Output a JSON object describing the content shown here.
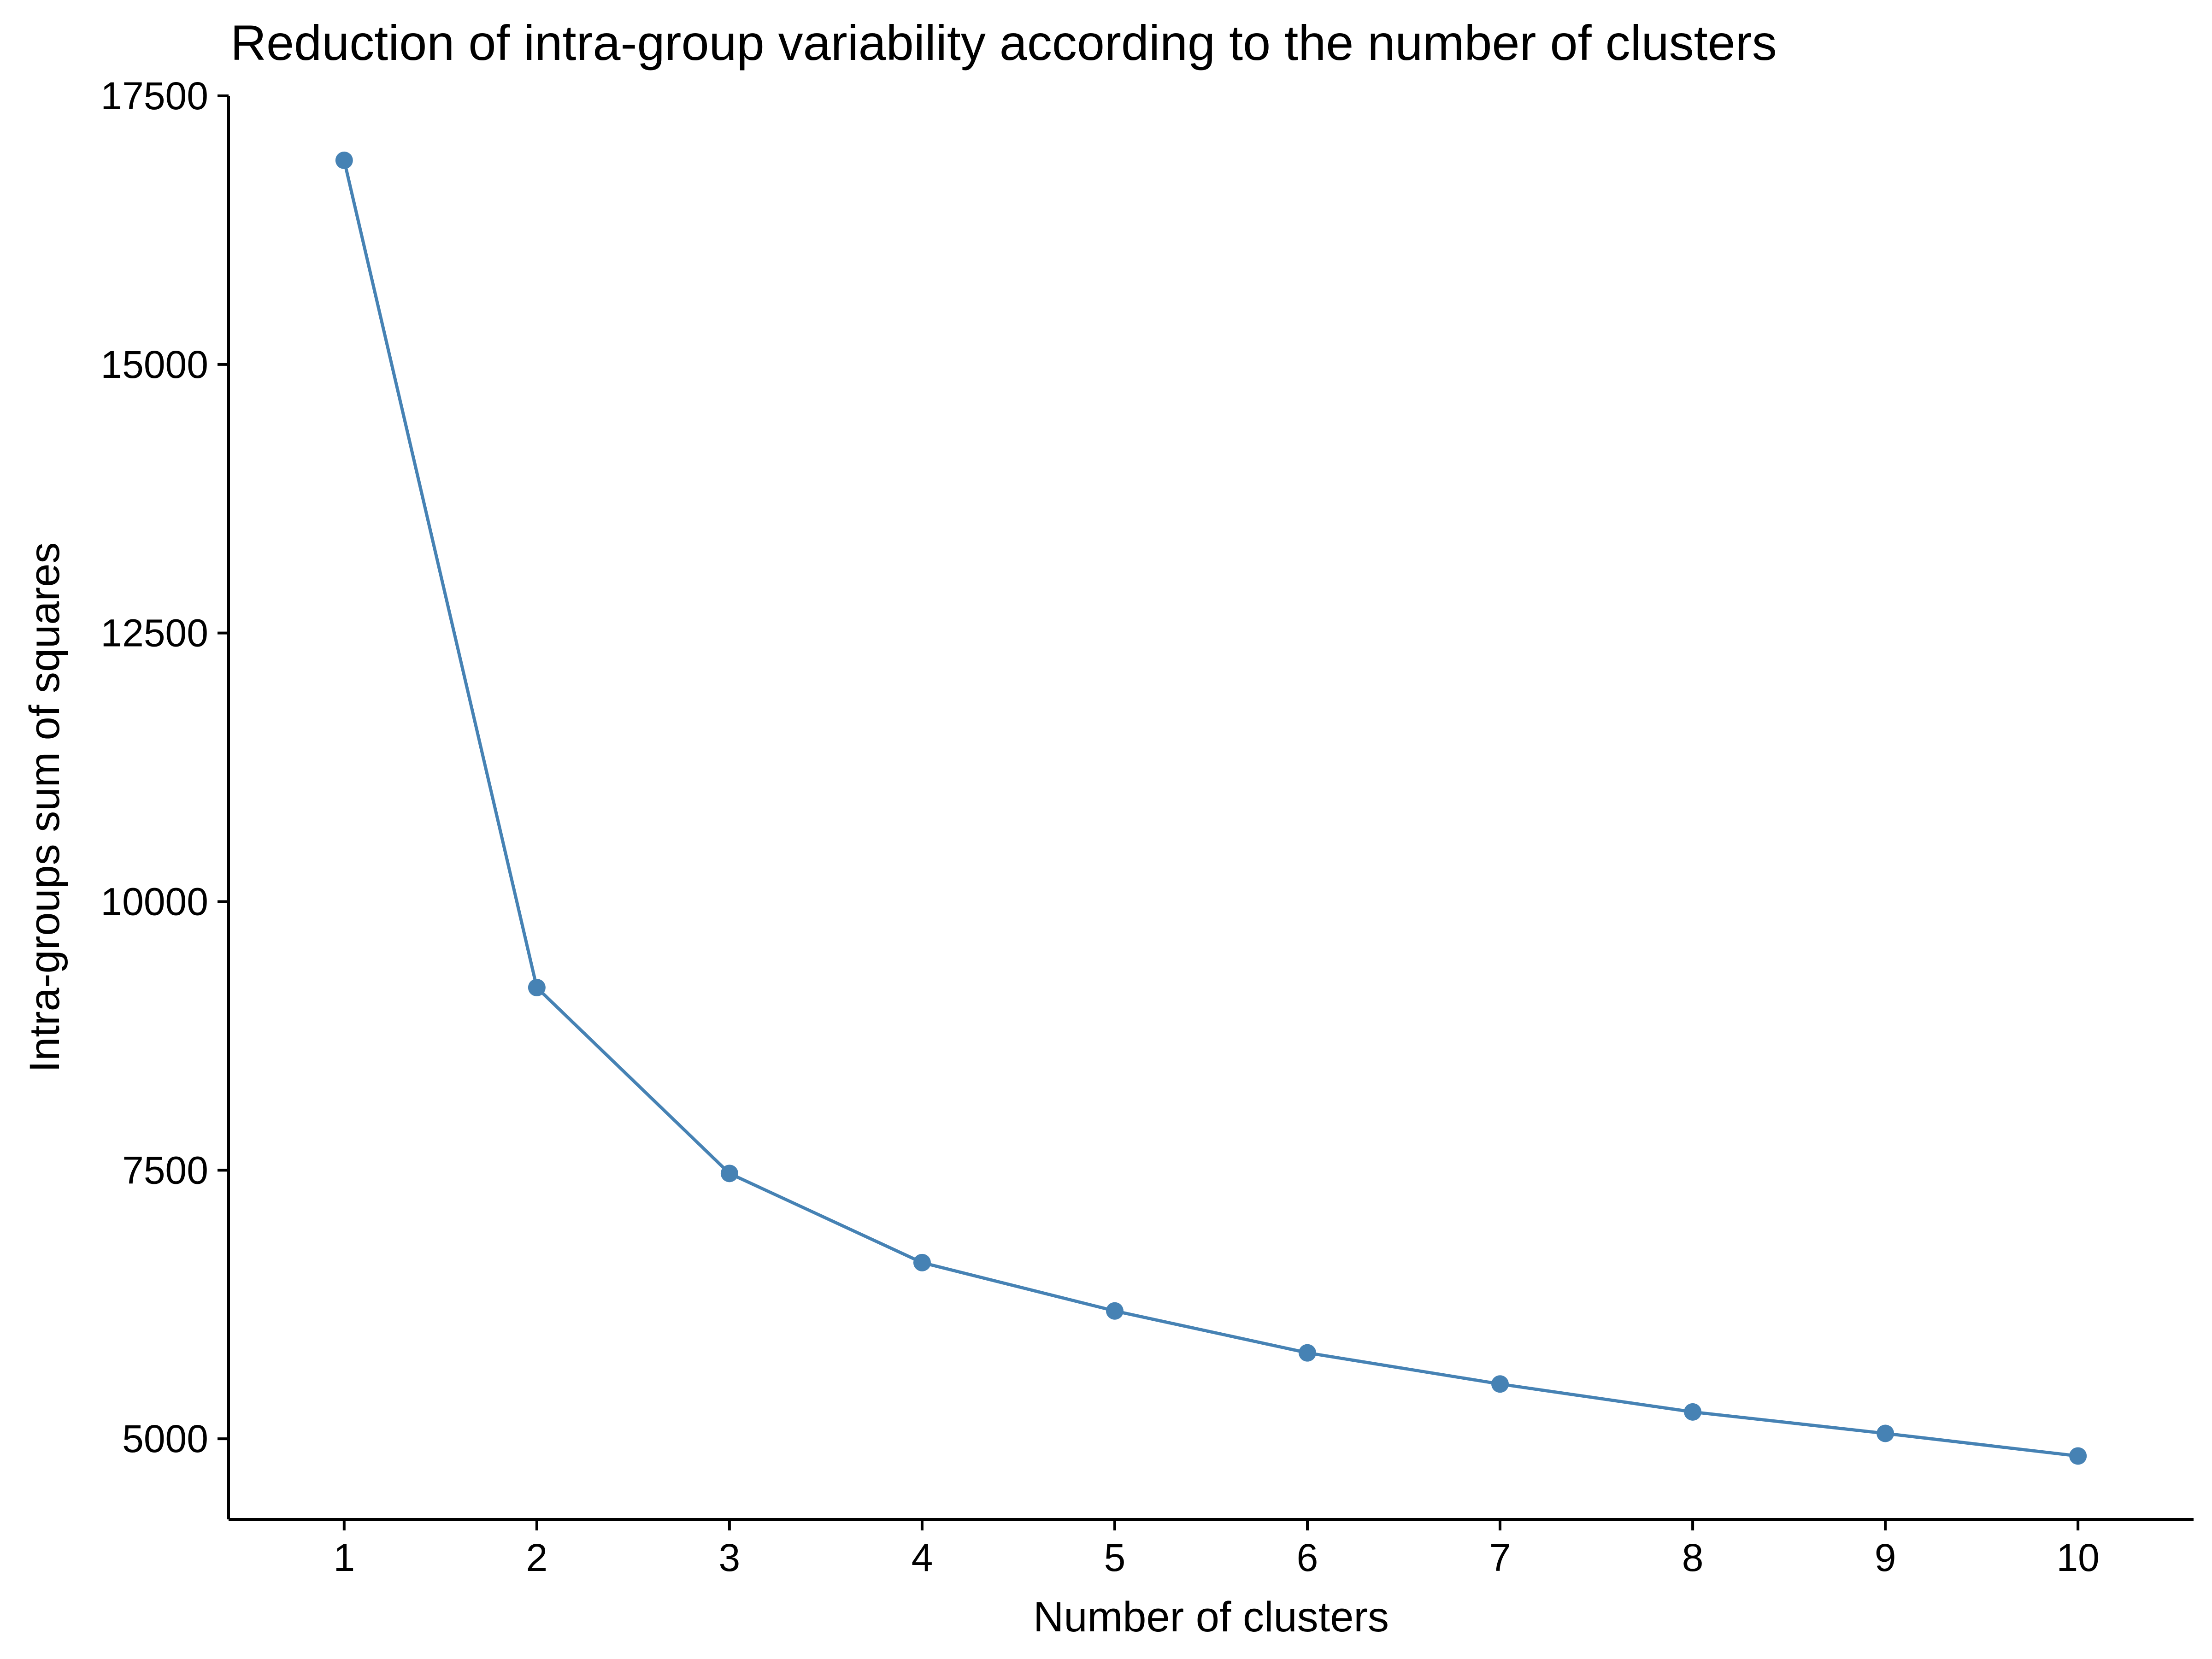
{
  "chart_data": {
    "type": "line",
    "title": "Reduction of intra-group variability according to the number of clusters",
    "xlabel": "Number of clusters",
    "ylabel": "Intra-groups sum of squares",
    "x": [
      1,
      2,
      3,
      4,
      5,
      6,
      7,
      8,
      9,
      10
    ],
    "series": [
      {
        "values": [
          16900,
          9200,
          7470,
          6640,
          6190,
          5800,
          5510,
          5250,
          5050,
          4840
        ]
      }
    ],
    "xticks": [
      "1",
      "2",
      "3",
      "4",
      "5",
      "6",
      "7",
      "8",
      "9",
      "10"
    ],
    "yticks": [
      5000,
      7500,
      10000,
      12500,
      15000,
      17500
    ],
    "ytick_labels": [
      "5000",
      "7500",
      "10000",
      "12500",
      "15000",
      "17500"
    ],
    "xlim": [
      0.4,
      10.6
    ],
    "ylim": [
      4250,
      17500
    ],
    "grid": false,
    "legend": "none",
    "colors": {
      "line": "#4682b4",
      "point": "#4682b4",
      "axis": "#000000"
    }
  }
}
